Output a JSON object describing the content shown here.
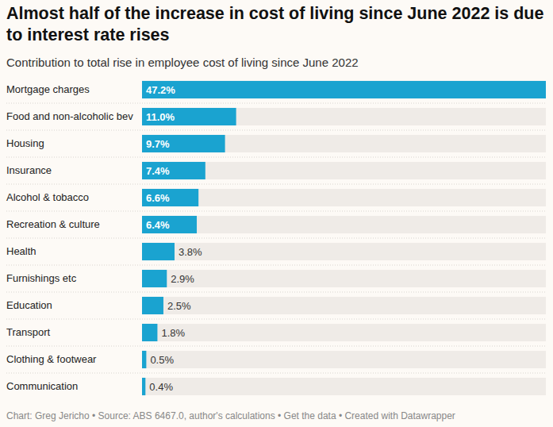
{
  "chart_data": {
    "type": "bar",
    "orientation": "horizontal",
    "title": "Almost half of the increase in cost of living since June 2022 is due to interest rate rises",
    "subtitle": "Contribution to total rise in employee cost of living since June 2022",
    "footer": "Chart: Greg Jericho • Source: ABS 6467.0, author's calculations • Get the data • Created with Datawrapper",
    "categories": [
      "Mortgage charges",
      "Food and non-alcoholic bev",
      "Housing",
      "Insurance",
      "Alcohol & tobacco",
      "Recreation & culture",
      "Health",
      "Furnishings etc",
      "Education",
      "Transport",
      "Clothing & footwear",
      "Communication"
    ],
    "values": [
      47.2,
      11.0,
      9.7,
      7.4,
      6.6,
      6.4,
      3.8,
      2.9,
      2.5,
      1.8,
      0.5,
      0.4
    ],
    "value_labels": [
      "47.2%",
      "11.0%",
      "9.7%",
      "7.4%",
      "6.6%",
      "6.4%",
      "3.8%",
      "2.9%",
      "2.5%",
      "1.8%",
      "0.5%",
      "0.4%"
    ],
    "color": "#1aa3d0",
    "xlim": [
      0,
      47.2
    ],
    "data_labels": true,
    "tick_labels": "y",
    "grid": false
  }
}
